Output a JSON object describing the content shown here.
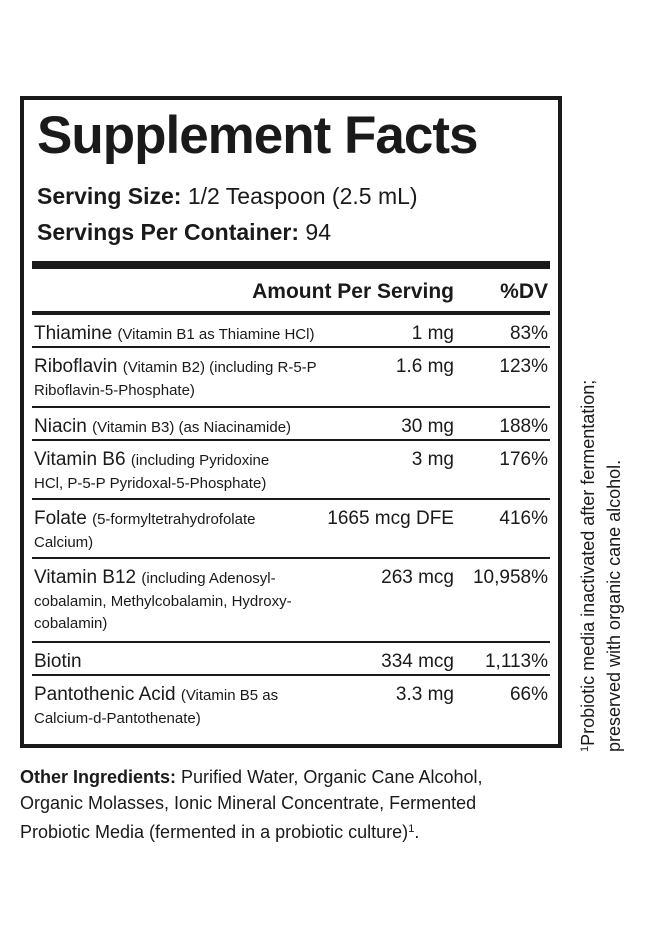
{
  "title": "Supplement Facts",
  "serving_size": {
    "label": "Serving Size:",
    "value": "1/2 Teaspoon (2.5 mL)"
  },
  "servings_per_container": {
    "label": "Servings Per Container:",
    "value": "94"
  },
  "header": {
    "amount": "Amount Per Serving",
    "dv": "%DV"
  },
  "nutrients": [
    {
      "name": "Thiamine",
      "detail_1": "(Vitamin B1 as Thiamine HCl)",
      "detail_2": "",
      "amount": "1 mg",
      "dv": "83%"
    },
    {
      "name": "Riboflavin",
      "detail_1": "(Vitamin B2) (including R-5-P",
      "detail_2": "Riboflavin-5-Phosphate)",
      "amount": "1.6 mg",
      "dv": "123%"
    },
    {
      "name": "Niacin",
      "detail_1": "(Vitamin B3) (as Niacinamide)",
      "detail_2": "",
      "amount": "30 mg",
      "dv": "188%"
    },
    {
      "name": "Vitamin B6",
      "detail_1": "(including Pyridoxine",
      "detail_2": "HCl, P-5-P Pyridoxal-5-Phosphate)",
      "amount": "3 mg",
      "dv": "176%"
    },
    {
      "name": "Folate",
      "detail_1": "(5-formyltetrahydrofolate",
      "detail_2": "Calcium)",
      "amount": "1665 mcg DFE",
      "dv": "416%"
    },
    {
      "name": "Vitamin B12",
      "detail_1": "(including Adenosyl-",
      "detail_2": "cobalamin, Methylcobalamin, Hydroxy-",
      "detail_3": "cobalamin)",
      "amount": "263 mcg",
      "dv": "10,958%"
    },
    {
      "name": "Biotin",
      "detail_1": "",
      "detail_2": "",
      "amount": "334 mcg",
      "dv": "1,113%"
    },
    {
      "name": "Pantothenic Acid",
      "detail_1": "(Vitamin B5 as",
      "detail_2": "Calcium-d-Pantothenate)",
      "amount": "3.3 mg",
      "dv": "66%"
    }
  ],
  "footnote": {
    "marker": "1",
    "line_1": "Probiotic media inactivated after fermentation;",
    "line_2": "preserved with organic cane alcohol."
  },
  "other_ingredients": {
    "label": "Other Ingredients:",
    "line_1": "Purified Water, Organic Cane Alcohol,",
    "line_2": "Organic Molasses, Ionic Mineral Concentrate, Fermented",
    "line_3": "Probiotic Media (fermented in a probiotic culture)",
    "marker": "1",
    "end": "."
  }
}
